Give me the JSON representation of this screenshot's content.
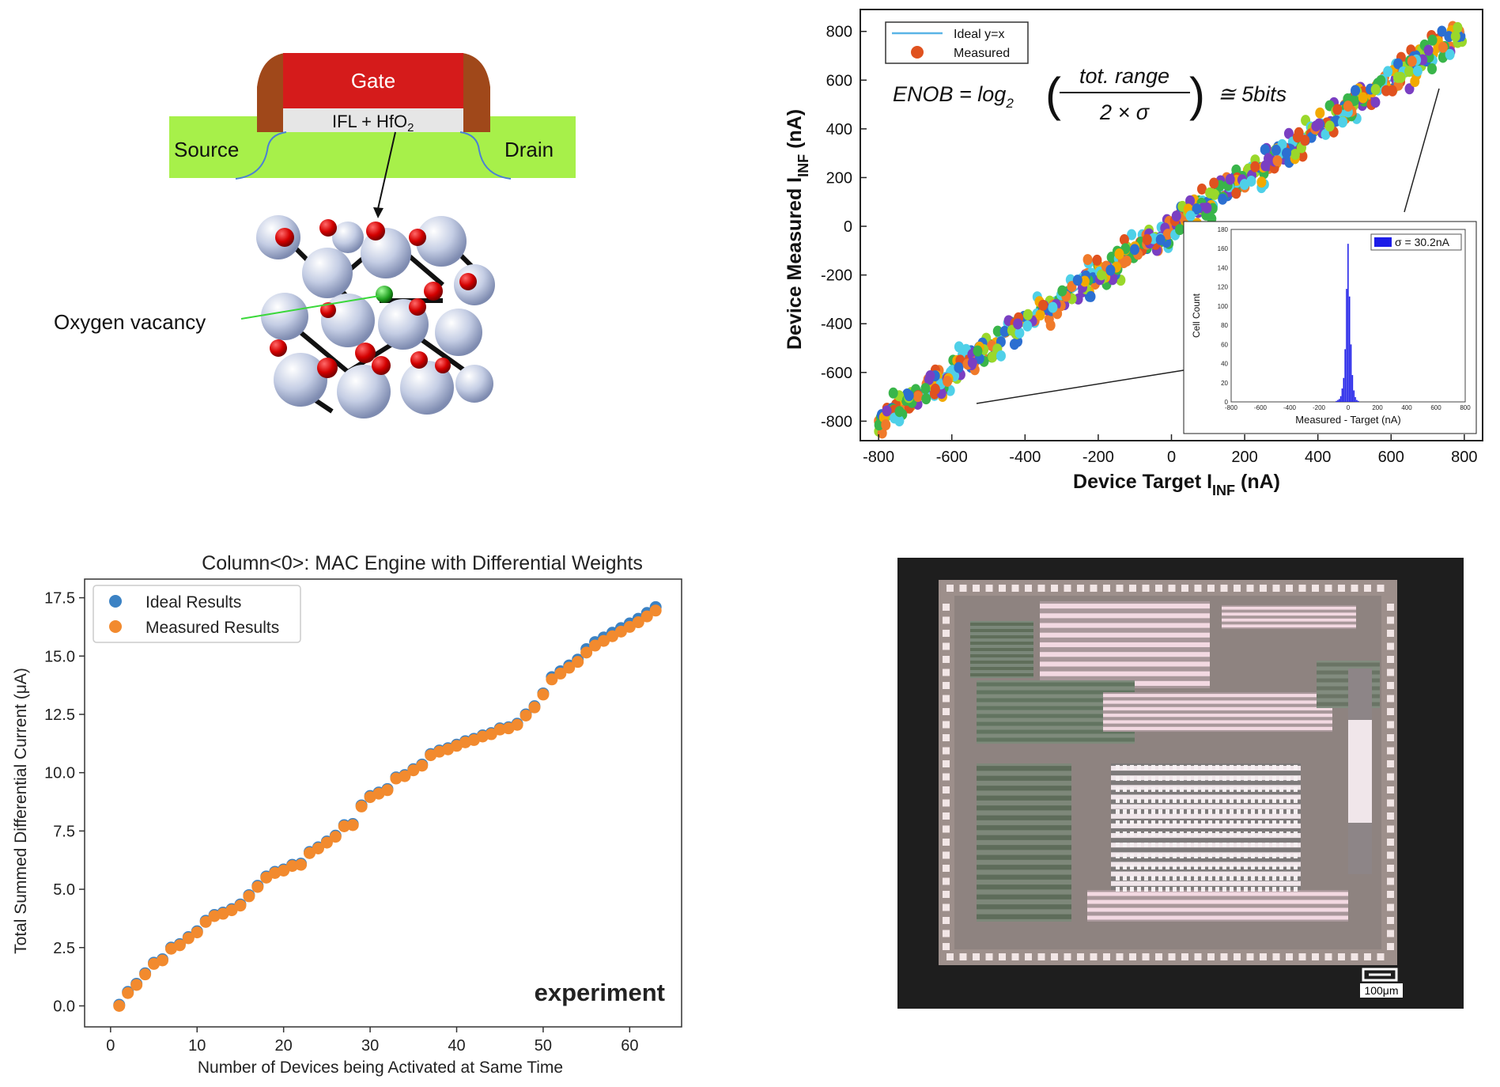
{
  "device": {
    "gate": "Gate",
    "ifl": "IFL + HfO",
    "ifl_sub": "2",
    "source": "Source",
    "drain": "Drain",
    "vacancy": "Oxygen vacancy"
  },
  "chip": {
    "scale_label": "100μm"
  },
  "chart_data": [
    {
      "type": "scatter",
      "name": "main-scatter",
      "xlabel_main": "Device Target I",
      "xlabel_sub": "INF",
      "xlabel_unit": " (nA)",
      "ylabel_main": "Device Measured I",
      "ylabel_sub": "INF",
      "ylabel_unit": " (nA)",
      "xlim": [
        -850,
        850
      ],
      "ylim": [
        -880,
        890
      ],
      "xticks": [
        -800,
        -600,
        -400,
        -200,
        0,
        200,
        400,
        600,
        800
      ],
      "yticks": [
        -800,
        -600,
        -400,
        -200,
        0,
        200,
        400,
        600,
        800
      ],
      "legend": [
        {
          "name": "Ideal y=x",
          "color": "#5ab4e6",
          "kind": "line"
        },
        {
          "name": "Measured",
          "color": "#e0521f",
          "kind": "marker"
        }
      ],
      "legend_position": "top-left",
      "formula": {
        "lhs": "ENOB = log",
        "sub": "2",
        "num": "tot. range",
        "den": "2 × σ",
        "rhs": "≅ 5bits"
      },
      "series": [
        {
          "name": "Ideal y=x",
          "x": [
            -800,
            800
          ],
          "y": [
            -800,
            800
          ]
        },
        {
          "name": "Measured",
          "x_range": [
            -800,
            800
          ],
          "sigma": 30.2,
          "colors": [
            "#e0521f",
            "#2c6fd1",
            "#f2a900",
            "#39b54a",
            "#7a3fc2",
            "#4fd0e8",
            "#f07a2a",
            "#9ad82b"
          ]
        }
      ]
    },
    {
      "type": "bar",
      "name": "inset-histogram",
      "xlabel": "Measured - Target (nA)",
      "ylabel": "Cell Count",
      "xlim": [
        -800,
        800
      ],
      "ylim": [
        0,
        180
      ],
      "xticks": [
        -800,
        -600,
        -400,
        -200,
        0,
        200,
        400,
        600,
        800
      ],
      "yticks": [
        0,
        20,
        40,
        60,
        80,
        100,
        120,
        140,
        160,
        180
      ],
      "legend": [
        {
          "name": "σ = 30.2nA",
          "color": "#1d1de8"
        }
      ],
      "legend_position": "top-right",
      "bin_width": 10,
      "x": [
        -80,
        -70,
        -60,
        -50,
        -40,
        -30,
        -20,
        -10,
        0,
        10,
        20,
        30,
        40,
        50,
        60,
        70
      ],
      "values": [
        1,
        2,
        3,
        6,
        14,
        25,
        55,
        118,
        165,
        110,
        60,
        28,
        12,
        5,
        2,
        1
      ]
    },
    {
      "type": "scatter",
      "name": "mac-chart",
      "title": "Column<0>: MAC Engine with Differential Weights",
      "xlabel": "Number of Devices being Activated at Same Time",
      "ylabel": "Total Summed Differential Current (μA)",
      "xlim": [
        -3,
        66
      ],
      "ylim": [
        -0.9,
        18.3
      ],
      "xticks": [
        0,
        10,
        20,
        30,
        40,
        50,
        60
      ],
      "yticks": [
        0.0,
        2.5,
        5.0,
        7.5,
        10.0,
        12.5,
        15.0,
        17.5
      ],
      "annotation": "experiment",
      "legend_position": "top-left",
      "series": [
        {
          "name": "Ideal Results",
          "color": "#3b82c4",
          "x": [
            1,
            2,
            3,
            4,
            5,
            6,
            7,
            8,
            9,
            10,
            11,
            12,
            13,
            14,
            15,
            16,
            17,
            18,
            19,
            20,
            21,
            22,
            23,
            24,
            25,
            26,
            27,
            28,
            29,
            30,
            31,
            32,
            33,
            34,
            35,
            36,
            37,
            38,
            39,
            40,
            41,
            42,
            43,
            44,
            45,
            46,
            47,
            48,
            49,
            50,
            51,
            52,
            53,
            54,
            55,
            56,
            57,
            58,
            59,
            60,
            61,
            62,
            63
          ],
          "values": [
            0.05,
            0.6,
            0.95,
            1.4,
            1.85,
            2.0,
            2.5,
            2.65,
            2.95,
            3.2,
            3.65,
            3.9,
            4.0,
            4.15,
            4.35,
            4.75,
            5.15,
            5.55,
            5.75,
            5.85,
            6.05,
            6.1,
            6.6,
            6.8,
            7.05,
            7.3,
            7.75,
            7.8,
            8.6,
            9.0,
            9.15,
            9.3,
            9.8,
            9.9,
            10.15,
            10.35,
            10.8,
            10.95,
            11.05,
            11.2,
            11.35,
            11.45,
            11.6,
            11.7,
            11.9,
            11.95,
            12.1,
            12.5,
            12.85,
            13.4,
            14.1,
            14.35,
            14.6,
            14.85,
            15.3,
            15.6,
            15.8,
            16.0,
            16.2,
            16.4,
            16.6,
            16.85,
            17.1
          ]
        },
        {
          "name": "Measured Results",
          "color": "#f28a2e",
          "x": [
            1,
            2,
            3,
            4,
            5,
            6,
            7,
            8,
            9,
            10,
            11,
            12,
            13,
            14,
            15,
            16,
            17,
            18,
            19,
            20,
            21,
            22,
            23,
            24,
            25,
            26,
            27,
            28,
            29,
            30,
            31,
            32,
            33,
            34,
            35,
            36,
            37,
            38,
            39,
            40,
            41,
            42,
            43,
            44,
            45,
            46,
            47,
            48,
            49,
            50,
            51,
            52,
            53,
            54,
            55,
            56,
            57,
            58,
            59,
            60,
            61,
            62,
            63
          ],
          "values": [
            0.0,
            0.55,
            0.9,
            1.35,
            1.8,
            1.95,
            2.45,
            2.6,
            2.9,
            3.15,
            3.6,
            3.85,
            3.95,
            4.1,
            4.3,
            4.7,
            5.1,
            5.5,
            5.7,
            5.8,
            6.0,
            6.05,
            6.55,
            6.75,
            7.0,
            7.25,
            7.7,
            7.75,
            8.55,
            8.95,
            9.1,
            9.25,
            9.75,
            9.85,
            10.1,
            10.3,
            10.75,
            10.9,
            11.0,
            11.15,
            11.3,
            11.4,
            11.55,
            11.65,
            11.85,
            11.9,
            12.05,
            12.45,
            12.8,
            13.35,
            14.0,
            14.25,
            14.5,
            14.75,
            15.15,
            15.45,
            15.65,
            15.85,
            16.05,
            16.25,
            16.45,
            16.7,
            16.95
          ]
        }
      ]
    }
  ]
}
